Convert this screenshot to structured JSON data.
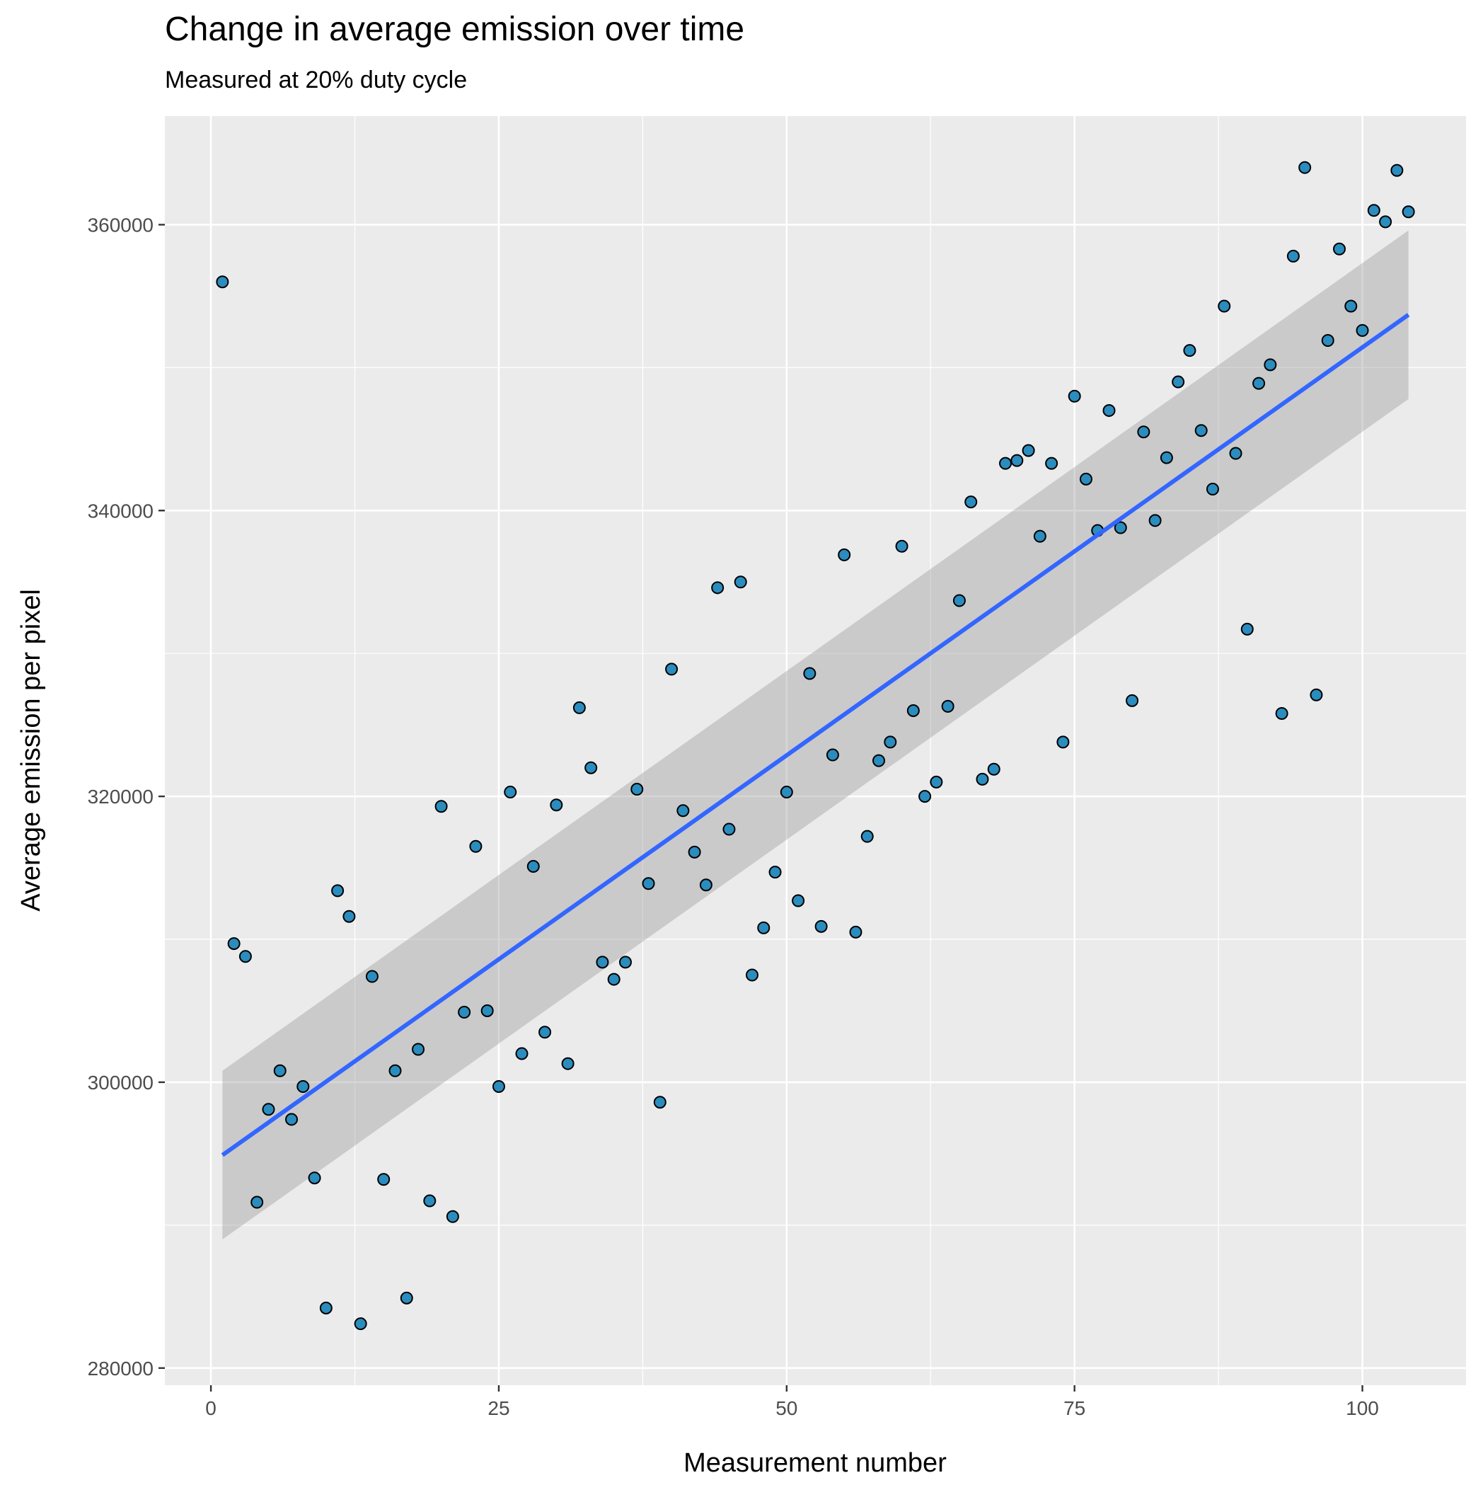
{
  "chart_data": {
    "type": "scatter",
    "title": "Change in average emission over time",
    "subtitle": "Measured at 20% duty cycle",
    "xlabel": "Measurement number",
    "ylabel": "Average emission per pixel",
    "xlim": [
      -4,
      109
    ],
    "ylim": [
      278800,
      367600
    ],
    "x_ticks": [
      0,
      25,
      50,
      75,
      100
    ],
    "y_ticks": [
      280000,
      300000,
      320000,
      340000,
      360000
    ],
    "x_tick_labels": [
      "0",
      "25",
      "50",
      "75",
      "100"
    ],
    "y_tick_labels": [
      "280000",
      "300000",
      "320000",
      "340000",
      "360000"
    ],
    "grid": true,
    "legend": "none",
    "colors": {
      "panel": "#ebebeb",
      "grid": "#ffffff",
      "point_fill": "#2b8cbe",
      "point_stroke": "#000000",
      "fit_line": "#3366ff",
      "confidence_band": "#999999"
    },
    "series": [
      {
        "type": "scatter",
        "x": [
          1,
          2,
          3,
          4,
          5,
          6,
          7,
          8,
          9,
          10,
          11,
          12,
          13,
          14,
          15,
          16,
          17,
          18,
          19,
          20,
          21,
          22,
          23,
          24,
          25,
          26,
          27,
          28,
          29,
          30,
          31,
          32,
          33,
          34,
          35,
          36,
          37,
          38,
          39,
          40,
          41,
          42,
          43,
          44,
          45,
          46,
          47,
          48,
          49,
          50,
          51,
          52,
          53,
          54,
          55,
          56,
          57,
          58,
          59,
          60,
          61,
          62,
          63,
          64,
          65,
          66,
          67,
          68,
          69,
          70,
          71,
          72,
          73,
          74,
          75,
          76,
          77,
          78,
          79,
          80,
          81,
          82,
          83,
          84,
          85,
          86,
          87,
          88,
          89,
          90,
          91,
          92,
          93,
          94,
          95,
          96,
          97,
          98,
          99,
          100,
          101,
          102,
          103,
          104
        ],
        "y": [
          356000,
          309700,
          308800,
          291600,
          298100,
          300800,
          297400,
          299700,
          293300,
          284200,
          313400,
          311600,
          283100,
          307400,
          293200,
          300800,
          284900,
          302300,
          291700,
          319300,
          290600,
          304900,
          316500,
          305000,
          299700,
          320300,
          302000,
          315100,
          303500,
          319400,
          301300,
          326200,
          322000,
          308400,
          307200,
          308400,
          320500,
          313900,
          298600,
          328900,
          319000,
          316100,
          313800,
          334600,
          317700,
          335000,
          307500,
          310800,
          314700,
          320300,
          312700,
          328600,
          310900,
          322900,
          336900,
          310500,
          317200,
          322500,
          323800,
          337500,
          326000,
          320000,
          321000,
          326300,
          333700,
          340600,
          321200,
          321900,
          343300,
          343500,
          344200,
          338200,
          343300,
          323800,
          348000,
          342200,
          338600,
          347000,
          338800,
          326700,
          345500,
          339300,
          343700,
          349000,
          351200,
          345600,
          341500,
          354300,
          344000,
          331700,
          348900,
          350200,
          325800,
          357800,
          364000,
          327100,
          351900,
          358300,
          354300,
          352600,
          361000,
          360200,
          363800,
          360900
        ]
      },
      {
        "type": "line",
        "name": "",
        "x": [
          1,
          104
        ],
        "y": [
          294900,
          353700
        ]
      }
    ],
    "confidence_band": {
      "x": [
        1,
        104
      ],
      "upper": [
        300800,
        359600
      ],
      "lower": [
        289000,
        347800
      ]
    }
  }
}
